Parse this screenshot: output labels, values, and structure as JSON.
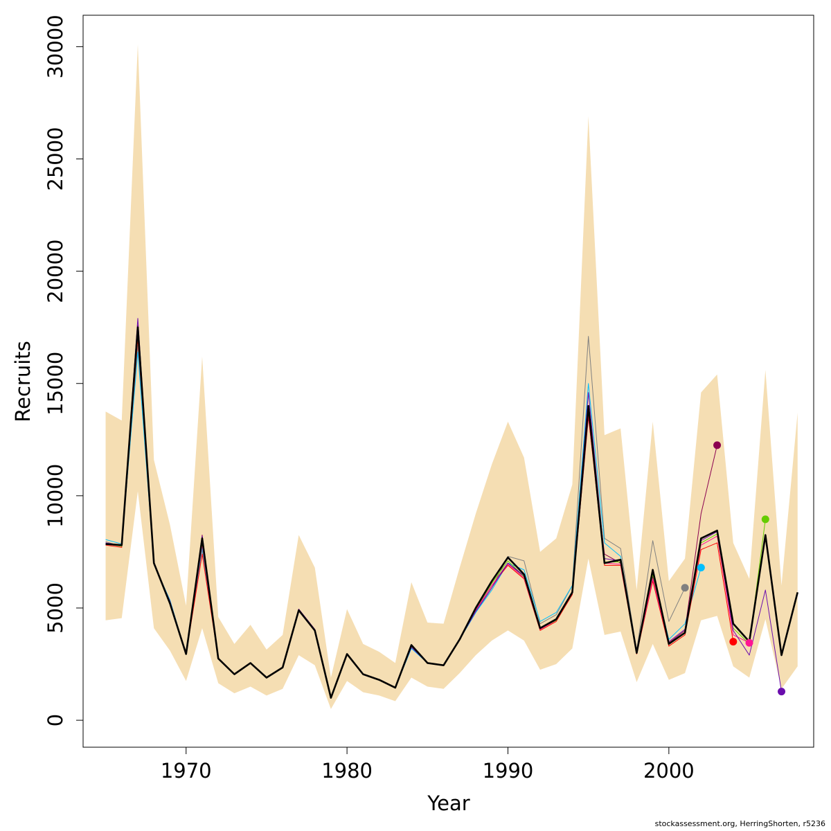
{
  "chart_data": {
    "type": "line",
    "title": "",
    "xlabel": "Year",
    "ylabel": "Recruits",
    "xlim": [
      1963.6,
      2009.0
    ],
    "ylim": [
      -1200,
      31400
    ],
    "xticks": [
      1970,
      1980,
      1990,
      2000
    ],
    "yticks": [
      0,
      5000,
      10000,
      15000,
      20000,
      25000,
      30000
    ],
    "grid": false,
    "legend": "none",
    "band": {
      "color": "#F5DEB3",
      "x": [
        1965,
        1966,
        1967,
        1968,
        1969,
        1970,
        1971,
        1972,
        1973,
        1974,
        1975,
        1976,
        1977,
        1978,
        1979,
        1980,
        1981,
        1982,
        1983,
        1984,
        1985,
        1986,
        1987,
        1988,
        1989,
        1990,
        1991,
        1992,
        1993,
        1994,
        1995,
        1996,
        1997,
        1998,
        1999,
        2000,
        2001,
        2002,
        2003,
        2004,
        2005,
        2006,
        2007,
        2008
      ],
      "upper": [
        13750,
        13350,
        30100,
        11600,
        8700,
        5100,
        16200,
        4600,
        3400,
        4250,
        3150,
        3800,
        8250,
        6800,
        1900,
        4950,
        3400,
        3050,
        2550,
        6150,
        4350,
        4300,
        6800,
        9200,
        11400,
        13300,
        11700,
        7500,
        8100,
        10500,
        26900,
        12700,
        13000,
        5800,
        13300,
        6200,
        7200,
        14600,
        15400,
        7900,
        6300,
        15600,
        6000,
        13700
      ],
      "lower": [
        4450,
        4550,
        10200,
        4100,
        3100,
        1750,
        4100,
        1650,
        1200,
        1500,
        1100,
        1400,
        2900,
        2450,
        500,
        1750,
        1250,
        1100,
        850,
        1900,
        1500,
        1400,
        2100,
        2900,
        3550,
        4000,
        3550,
        2250,
        2500,
        3200,
        7200,
        3800,
        3950,
        1700,
        3400,
        1800,
        2100,
        4450,
        4650,
        2400,
        1900,
        4500,
        1400,
        2400
      ]
    },
    "series": [
      {
        "color": "#000000",
        "width": 2.6,
        "end_marker": false,
        "x": [
          1965,
          1966,
          1967,
          1968,
          1969,
          1970,
          1971,
          1972,
          1973,
          1974,
          1975,
          1976,
          1977,
          1978,
          1979,
          1980,
          1981,
          1982,
          1983,
          1984,
          1985,
          1986,
          1987,
          1988,
          1989,
          1990,
          1991,
          1992,
          1993,
          1994,
          1995,
          1996,
          1997,
          1998,
          1999,
          2000,
          2001,
          2002,
          2003,
          2004,
          2005,
          2006,
          2007,
          2008
        ],
        "values": [
          7850,
          7800,
          17500,
          7000,
          5200,
          2950,
          8100,
          2750,
          2050,
          2550,
          1900,
          2350,
          4900,
          4000,
          1000,
          2950,
          2050,
          1800,
          1450,
          3350,
          2550,
          2450,
          3600,
          5000,
          6200,
          7250,
          6500,
          4100,
          4500,
          5700,
          14000,
          7000,
          7150,
          3000,
          6700,
          3400,
          3900,
          8100,
          8450,
          4300,
          3500,
          8250,
          2900,
          5700
        ]
      },
      {
        "color": "#808080",
        "width": 1,
        "end_marker": true,
        "x": [
          1965,
          1966,
          1967,
          1968,
          1969,
          1970,
          1971,
          1972,
          1973,
          1974,
          1975,
          1976,
          1977,
          1978,
          1979,
          1980,
          1981,
          1982,
          1983,
          1984,
          1985,
          1986,
          1987,
          1988,
          1989,
          1990,
          1991,
          1992,
          1993,
          1994,
          1995,
          1996,
          1997,
          1998,
          1999,
          2000,
          2001
        ],
        "values": [
          7950,
          7750,
          16700,
          6950,
          5300,
          2950,
          7600,
          2750,
          2050,
          2550,
          1900,
          2350,
          4900,
          4000,
          1000,
          2950,
          2050,
          1800,
          1450,
          3250,
          2550,
          2450,
          3600,
          4800,
          5900,
          7300,
          7100,
          4300,
          4700,
          6000,
          17100,
          8100,
          7650,
          3100,
          8000,
          4400,
          5900
        ]
      },
      {
        "color": "#00BFFF",
        "width": 1,
        "end_marker": true,
        "x": [
          1965,
          1966,
          1967,
          1968,
          1969,
          1970,
          1971,
          1972,
          1973,
          1974,
          1975,
          1976,
          1977,
          1978,
          1979,
          1980,
          1981,
          1982,
          1983,
          1984,
          1985,
          1986,
          1987,
          1988,
          1989,
          1990,
          1991,
          1992,
          1993,
          1994,
          1995,
          1996,
          1997,
          1998,
          1999,
          2000,
          2001,
          2002
        ],
        "values": [
          8050,
          7850,
          16400,
          6950,
          5350,
          2950,
          7700,
          2750,
          2050,
          2550,
          1900,
          2350,
          4900,
          4000,
          1000,
          2950,
          2050,
          1800,
          1450,
          3200,
          2550,
          2450,
          3600,
          4800,
          5800,
          7000,
          6700,
          4400,
          4800,
          6000,
          15000,
          7900,
          7300,
          3100,
          6600,
          3600,
          4300,
          6800
        ]
      },
      {
        "color": "#8B0050",
        "width": 1,
        "end_marker": true,
        "x": [
          1965,
          1966,
          1967,
          1968,
          1969,
          1970,
          1971,
          1972,
          1973,
          1974,
          1975,
          1976,
          1977,
          1978,
          1979,
          1980,
          1981,
          1982,
          1983,
          1984,
          1985,
          1986,
          1987,
          1988,
          1989,
          1990,
          1991,
          1992,
          1993,
          1994,
          1995,
          1996,
          1997,
          1998,
          1999,
          2000,
          2001,
          2002,
          2003
        ],
        "values": [
          7900,
          7750,
          17600,
          6950,
          5250,
          2950,
          8250,
          2750,
          2050,
          2550,
          1900,
          2350,
          4950,
          4050,
          1000,
          2950,
          2050,
          1800,
          1450,
          3300,
          2550,
          2450,
          3600,
          4900,
          6000,
          7000,
          6400,
          4050,
          4450,
          5600,
          13500,
          7400,
          7000,
          3050,
          6400,
          3450,
          4000,
          9200,
          12250
        ]
      },
      {
        "color": "#FF0000",
        "width": 1,
        "end_marker": true,
        "x": [
          1965,
          1966,
          1967,
          1968,
          1969,
          1970,
          1971,
          1972,
          1973,
          1974,
          1975,
          1976,
          1977,
          1978,
          1979,
          1980,
          1981,
          1982,
          1983,
          1984,
          1985,
          1986,
          1987,
          1988,
          1989,
          1990,
          1991,
          1992,
          1993,
          1994,
          1995,
          1996,
          1997,
          1998,
          1999,
          2000,
          2001,
          2002,
          2003,
          2004
        ],
        "values": [
          7800,
          7700,
          17000,
          7000,
          5250,
          2950,
          7400,
          2750,
          2050,
          2550,
          1900,
          2350,
          4900,
          4000,
          1000,
          2950,
          2050,
          1800,
          1450,
          3350,
          2550,
          2450,
          3600,
          4900,
          6000,
          6900,
          6300,
          4000,
          4400,
          5600,
          13600,
          6900,
          6900,
          2950,
          6200,
          3300,
          3800,
          7600,
          7900,
          3500
        ]
      },
      {
        "color": "#FF1493",
        "width": 1,
        "end_marker": true,
        "x": [
          1965,
          1966,
          1967,
          1968,
          1969,
          1970,
          1971,
          1972,
          1973,
          1974,
          1975,
          1976,
          1977,
          1978,
          1979,
          1980,
          1981,
          1982,
          1983,
          1984,
          1985,
          1986,
          1987,
          1988,
          1989,
          1990,
          1991,
          1992,
          1993,
          1994,
          1995,
          1996,
          1997,
          1998,
          1999,
          2000,
          2001,
          2002,
          2003,
          2004,
          2005
        ],
        "values": [
          7850,
          7750,
          17300,
          7000,
          5250,
          2950,
          7800,
          2750,
          2050,
          2550,
          1900,
          2350,
          4900,
          4000,
          1000,
          2950,
          2050,
          1800,
          1450,
          3300,
          2550,
          2450,
          3600,
          4900,
          6000,
          6950,
          6350,
          4050,
          4450,
          5650,
          13800,
          7000,
          6950,
          3000,
          6300,
          3400,
          3900,
          7800,
          8200,
          3800,
          3450
        ]
      },
      {
        "color": "#66CC00",
        "width": 1,
        "end_marker": true,
        "x": [
          1965,
          1966,
          1967,
          1968,
          1969,
          1970,
          1971,
          1972,
          1973,
          1974,
          1975,
          1976,
          1977,
          1978,
          1979,
          1980,
          1981,
          1982,
          1983,
          1984,
          1985,
          1986,
          1987,
          1988,
          1989,
          1990,
          1991,
          1992,
          1993,
          1994,
          1995,
          1996,
          1997,
          1998,
          1999,
          2000,
          2001,
          2002,
          2003,
          2004,
          2005,
          2006
        ],
        "values": [
          7850,
          7750,
          17200,
          7000,
          5250,
          2950,
          7900,
          2750,
          2050,
          2550,
          1900,
          2350,
          4900,
          4000,
          1000,
          2950,
          2050,
          1800,
          1450,
          3300,
          2550,
          2450,
          3600,
          4950,
          6100,
          7100,
          6400,
          4100,
          4450,
          5650,
          13900,
          7050,
          7050,
          3000,
          6500,
          3400,
          3900,
          7900,
          8300,
          4100,
          3400,
          8950
        ]
      },
      {
        "color": "#6A0DAD",
        "width": 1,
        "end_marker": true,
        "x": [
          1965,
          1966,
          1967,
          1968,
          1969,
          1970,
          1971,
          1972,
          1973,
          1974,
          1975,
          1976,
          1977,
          1978,
          1979,
          1980,
          1981,
          1982,
          1983,
          1984,
          1985,
          1986,
          1987,
          1988,
          1989,
          1990,
          1991,
          1992,
          1993,
          1994,
          1995,
          1996,
          1997,
          1998,
          1999,
          2000,
          2001,
          2002,
          2003,
          2004,
          2005,
          2006,
          2007
        ],
        "values": [
          7900,
          7800,
          17900,
          6950,
          5300,
          2950,
          8200,
          2750,
          2050,
          2550,
          1900,
          2350,
          4950,
          4050,
          1000,
          2950,
          2050,
          1800,
          1450,
          3250,
          2550,
          2450,
          3600,
          4850,
          5900,
          7000,
          6450,
          4100,
          4500,
          5700,
          14600,
          7200,
          7100,
          3050,
          6600,
          3500,
          4050,
          8000,
          8400,
          4000,
          2900,
          5800,
          1280
        ]
      }
    ]
  },
  "footer": {
    "credit": "stockassessment.org, HerringShorten, r5236"
  }
}
